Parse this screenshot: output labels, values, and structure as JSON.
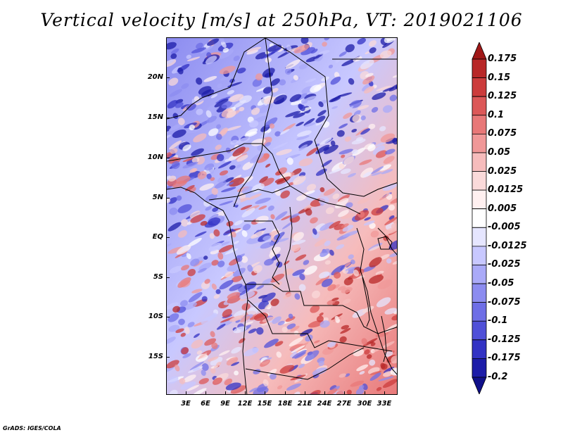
{
  "title": "Vertical velocity [m/s] at 250hPa, VT: 2019021106",
  "footer": "GrADS: IGES/COLA",
  "map": {
    "lat_labels": [
      "20N",
      "15N",
      "10N",
      "5N",
      "EQ",
      "5S",
      "10S",
      "15S"
    ],
    "lon_labels": [
      "3E",
      "6E",
      "9E",
      "12E",
      "15E",
      "18E",
      "21E",
      "24E",
      "27E",
      "30E",
      "33E"
    ]
  },
  "colorbar": {
    "labels": [
      "0.175",
      "0.15",
      "0.125",
      "0.1",
      "0.075",
      "0.05",
      "0.025",
      "0.0125",
      "0.005",
      "-0.005",
      "-0.0125",
      "-0.025",
      "-0.05",
      "-0.075",
      "-0.1",
      "-0.125",
      "-0.175",
      "-0.2"
    ],
    "colors": [
      "#a01818",
      "#b82828",
      "#cc3c3c",
      "#dc5858",
      "#e87878",
      "#f09898",
      "#f6bcbc",
      "#fadada",
      "#fff0f0",
      "#ffffff",
      "#e6e6ff",
      "#c8c8ff",
      "#aaaaf8",
      "#8c8cf0",
      "#6e6ee6",
      "#5050d8",
      "#3232c4",
      "#1c1ca8",
      "#10108a"
    ]
  }
}
